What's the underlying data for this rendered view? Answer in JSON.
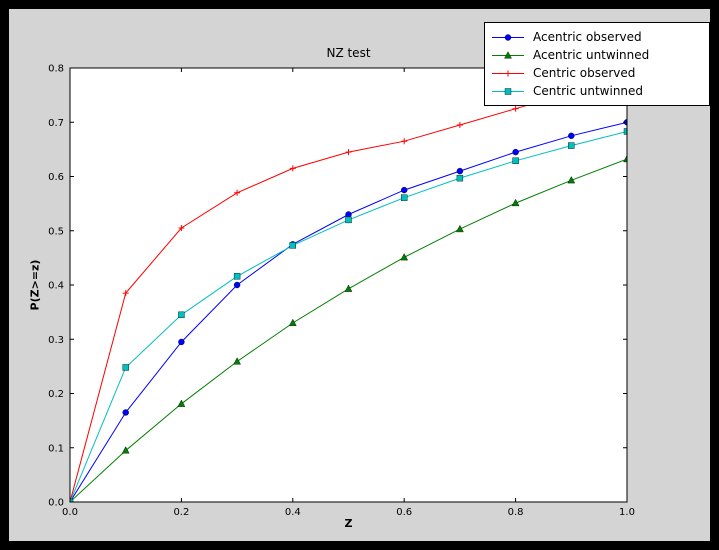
{
  "colors": {
    "page_bg": "#000000",
    "figure_bg": "#d4d4d4",
    "plot_bg": "#ffffff",
    "axes_frame": "#000000"
  },
  "chart_data": {
    "type": "line",
    "title": "NZ test",
    "xlabel": "Z",
    "ylabel": "P(Z>=z)",
    "xlim": [
      0.0,
      1.0
    ],
    "ylim": [
      0.0,
      0.8
    ],
    "grid": false,
    "legend_position": "upper right",
    "x_ticks": [
      0.0,
      0.2,
      0.4,
      0.6,
      0.8,
      1.0
    ],
    "x_tick_labels": [
      "0.0",
      "0.2",
      "0.4",
      "0.6",
      "0.8",
      "1.0"
    ],
    "y_ticks": [
      0.0,
      0.1,
      0.2,
      0.3,
      0.4,
      0.5,
      0.6,
      0.7,
      0.8
    ],
    "y_tick_labels": [
      "0.0",
      "0.1",
      "0.2",
      "0.3",
      "0.4",
      "0.5",
      "0.6",
      "0.7",
      "0.8"
    ],
    "x": [
      0.0,
      0.1,
      0.2,
      0.3,
      0.4,
      0.5,
      0.6,
      0.7,
      0.8,
      0.9,
      1.0
    ],
    "series": [
      {
        "name": "Acentric observed",
        "color": "#0000ff",
        "marker": "circle",
        "values": [
          0.0,
          0.165,
          0.295,
          0.4,
          0.475,
          0.53,
          0.575,
          0.61,
          0.645,
          0.675,
          0.7
        ]
      },
      {
        "name": "Acentric untwinned",
        "color": "#007f00",
        "marker": "triangle",
        "values": [
          0.0,
          0.095,
          0.181,
          0.259,
          0.33,
          0.393,
          0.451,
          0.503,
          0.551,
          0.593,
          0.632
        ]
      },
      {
        "name": "Centric observed",
        "color": "#ff0000",
        "marker": "plus",
        "values": [
          0.0,
          0.385,
          0.505,
          0.57,
          0.615,
          0.645,
          0.665,
          0.695,
          0.725,
          0.755,
          0.785
        ]
      },
      {
        "name": "Centric untwinned",
        "color": "#00bfbf",
        "marker": "square",
        "values": [
          0.0,
          0.248,
          0.345,
          0.416,
          0.473,
          0.52,
          0.561,
          0.597,
          0.629,
          0.657,
          0.683
        ]
      }
    ]
  }
}
